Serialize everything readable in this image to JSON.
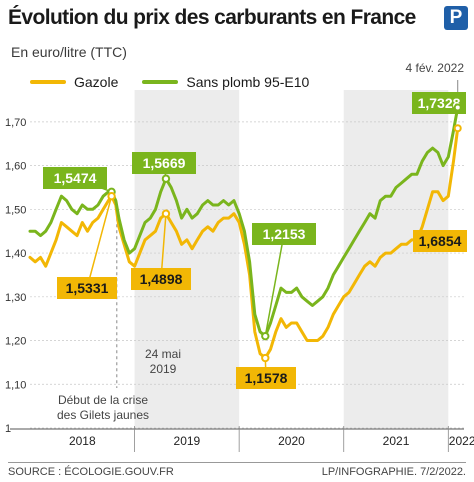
{
  "header": {
    "title": "Évolution du prix des carburants en France",
    "subtitle": "En euro/litre (TTC)",
    "logo_letter": "P"
  },
  "colors": {
    "gazole": "#f2b705",
    "sp95": "#7ab51d",
    "band": "#ececec"
  },
  "chart_data": {
    "type": "line",
    "title": "Évolution du prix des carburants en France",
    "subtitle": "En euro/litre (TTC)",
    "ylim": [
      1.0,
      1.75
    ],
    "yticks": [
      "1",
      "1,10",
      "1,20",
      "1,30",
      "1,40",
      "1,50",
      "1,60",
      "1,70"
    ],
    "xlim": [
      2018.0,
      2022.15
    ],
    "year_labels": [
      "2018",
      "2019",
      "2020",
      "2021",
      "2022"
    ],
    "legend_position": "top",
    "series": [
      {
        "name": "Gazole",
        "x": [
          2018.0,
          2018.05,
          2018.1,
          2018.15,
          2018.2,
          2018.25,
          2018.3,
          2018.35,
          2018.4,
          2018.45,
          2018.5,
          2018.55,
          2018.6,
          2018.65,
          2018.7,
          2018.75,
          2018.78,
          2018.82,
          2018.85,
          2018.9,
          2018.95,
          2019.0,
          2019.05,
          2019.1,
          2019.15,
          2019.2,
          2019.25,
          2019.3,
          2019.35,
          2019.4,
          2019.45,
          2019.5,
          2019.55,
          2019.6,
          2019.65,
          2019.7,
          2019.75,
          2019.8,
          2019.85,
          2019.9,
          2019.95,
          2020.0,
          2020.05,
          2020.1,
          2020.15,
          2020.2,
          2020.25,
          2020.3,
          2020.35,
          2020.4,
          2020.45,
          2020.5,
          2020.55,
          2020.6,
          2020.65,
          2020.7,
          2020.75,
          2020.8,
          2020.85,
          2020.9,
          2020.95,
          2021.0,
          2021.05,
          2021.1,
          2021.15,
          2021.2,
          2021.25,
          2021.3,
          2021.35,
          2021.4,
          2021.45,
          2021.5,
          2021.55,
          2021.6,
          2021.65,
          2021.7,
          2021.75,
          2021.8,
          2021.85,
          2021.9,
          2021.95,
          2022.0,
          2022.05,
          2022.09
        ],
        "y": [
          1.39,
          1.38,
          1.39,
          1.37,
          1.4,
          1.43,
          1.47,
          1.46,
          1.45,
          1.44,
          1.47,
          1.45,
          1.47,
          1.48,
          1.5,
          1.52,
          1.53,
          1.51,
          1.46,
          1.42,
          1.38,
          1.37,
          1.4,
          1.43,
          1.44,
          1.45,
          1.48,
          1.49,
          1.47,
          1.45,
          1.42,
          1.43,
          1.41,
          1.43,
          1.45,
          1.46,
          1.45,
          1.47,
          1.48,
          1.48,
          1.49,
          1.47,
          1.42,
          1.35,
          1.22,
          1.17,
          1.16,
          1.18,
          1.22,
          1.25,
          1.23,
          1.24,
          1.24,
          1.22,
          1.2,
          1.2,
          1.2,
          1.21,
          1.23,
          1.26,
          1.28,
          1.3,
          1.31,
          1.33,
          1.35,
          1.37,
          1.38,
          1.37,
          1.39,
          1.4,
          1.4,
          1.41,
          1.42,
          1.42,
          1.43,
          1.43,
          1.46,
          1.5,
          1.54,
          1.54,
          1.52,
          1.53,
          1.61,
          1.6854
        ]
      },
      {
        "name": "Sans plomb 95-E10",
        "x": [
          2018.0,
          2018.05,
          2018.1,
          2018.15,
          2018.2,
          2018.25,
          2018.3,
          2018.35,
          2018.4,
          2018.45,
          2018.5,
          2018.55,
          2018.6,
          2018.65,
          2018.7,
          2018.75,
          2018.78,
          2018.82,
          2018.85,
          2018.9,
          2018.95,
          2019.0,
          2019.05,
          2019.1,
          2019.15,
          2019.2,
          2019.25,
          2019.3,
          2019.35,
          2019.4,
          2019.45,
          2019.5,
          2019.55,
          2019.6,
          2019.65,
          2019.7,
          2019.75,
          2019.8,
          2019.85,
          2019.9,
          2019.95,
          2020.0,
          2020.05,
          2020.1,
          2020.15,
          2020.2,
          2020.25,
          2020.3,
          2020.35,
          2020.4,
          2020.45,
          2020.5,
          2020.55,
          2020.6,
          2020.65,
          2020.7,
          2020.75,
          2020.8,
          2020.85,
          2020.9,
          2020.95,
          2021.0,
          2021.05,
          2021.1,
          2021.15,
          2021.2,
          2021.25,
          2021.3,
          2021.35,
          2021.4,
          2021.45,
          2021.5,
          2021.55,
          2021.6,
          2021.65,
          2021.7,
          2021.75,
          2021.8,
          2021.85,
          2021.9,
          2021.95,
          2022.0,
          2022.05,
          2022.09
        ],
        "y": [
          1.45,
          1.45,
          1.44,
          1.45,
          1.47,
          1.5,
          1.53,
          1.52,
          1.5,
          1.49,
          1.51,
          1.5,
          1.5,
          1.51,
          1.53,
          1.54,
          1.54,
          1.52,
          1.48,
          1.43,
          1.4,
          1.41,
          1.44,
          1.47,
          1.48,
          1.5,
          1.54,
          1.57,
          1.55,
          1.52,
          1.48,
          1.5,
          1.48,
          1.49,
          1.51,
          1.52,
          1.51,
          1.51,
          1.52,
          1.51,
          1.52,
          1.49,
          1.45,
          1.38,
          1.26,
          1.22,
          1.21,
          1.24,
          1.28,
          1.32,
          1.31,
          1.31,
          1.32,
          1.3,
          1.29,
          1.28,
          1.29,
          1.3,
          1.32,
          1.35,
          1.37,
          1.39,
          1.41,
          1.43,
          1.45,
          1.47,
          1.49,
          1.48,
          1.52,
          1.53,
          1.53,
          1.55,
          1.56,
          1.57,
          1.58,
          1.58,
          1.61,
          1.63,
          1.64,
          1.63,
          1.6,
          1.62,
          1.68,
          1.7328
        ]
      }
    ],
    "callouts": [
      {
        "series": "Sans plomb 95-E10",
        "label": "1,5474"
      },
      {
        "series": "Sans plomb 95-E10",
        "label": "1,5669"
      },
      {
        "series": "Sans plomb 95-E10",
        "label": "1,2153"
      },
      {
        "series": "Sans plomb 95-E10",
        "label": "1,7328"
      },
      {
        "series": "Gazole",
        "label": "1,5331"
      },
      {
        "series": "Gazole",
        "label": "1,4898"
      },
      {
        "series": "Gazole",
        "label": "1,1578"
      },
      {
        "series": "Gazole",
        "label": "1,6854"
      }
    ],
    "annotations": [
      {
        "label": "24 mai",
        "label2": "2019"
      },
      {
        "label": "Début de la crise",
        "label2": "des Gilets jaunes"
      },
      {
        "label": "4 fév. 2022"
      }
    ]
  },
  "footer": {
    "source": "SOURCE : ÉCOLOGIE.GOUV.FR",
    "credit": "LP/INFOGRAPHIE.  7/2/2022."
  }
}
